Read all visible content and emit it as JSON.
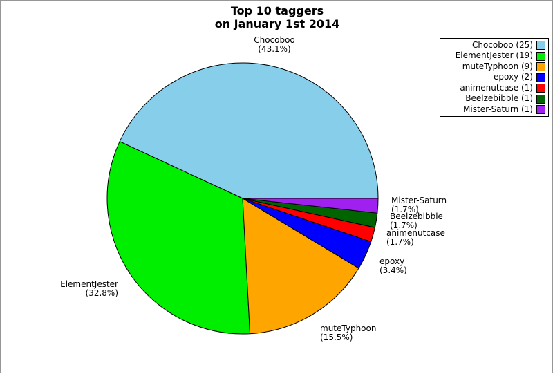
{
  "frame": {
    "background": "#ffffff",
    "border_color": "#969696"
  },
  "title": {
    "line1": "Top 10 taggers",
    "line2": "on January 1st 2014"
  },
  "chart_data": {
    "type": "pie",
    "title": "Top 10 taggers on January 1st 2014",
    "total": 58,
    "start_angle_deg": 0,
    "direction": "counterclockwise",
    "grid": false,
    "legend_position": "upper-right",
    "slices": [
      {
        "name": "Chocoboo",
        "value": 25,
        "pct_text": "(43.1%)",
        "color": "#87CEEB"
      },
      {
        "name": "ElementJester",
        "value": 19,
        "pct_text": "(32.8%)",
        "color": "#00EE00"
      },
      {
        "name": "muteTyphoon",
        "value": 9,
        "pct_text": "(15.5%)",
        "color": "#FFA500"
      },
      {
        "name": "epoxy",
        "value": 2,
        "pct_text": "(3.4%)",
        "color": "#0000FF"
      },
      {
        "name": "animenutcase",
        "value": 1,
        "pct_text": "(1.7%)",
        "color": "#FF0000"
      },
      {
        "name": "Beelzebibble",
        "value": 1,
        "pct_text": "(1.7%)",
        "color": "#006400"
      },
      {
        "name": "Mister-Saturn",
        "value": 1,
        "pct_text": "(1.7%)",
        "color": "#A020F0"
      }
    ],
    "legend_entries": [
      {
        "text": "Chocoboo (25)",
        "color": "#87CEEB"
      },
      {
        "text": "ElementJester (19)",
        "color": "#00EE00"
      },
      {
        "text": "muteTyphoon (9)",
        "color": "#FFA500"
      },
      {
        "text": "epoxy (2)",
        "color": "#0000FF"
      },
      {
        "text": "animenutcase (1)",
        "color": "#FF0000"
      },
      {
        "text": "Beelzebibble (1)",
        "color": "#006400"
      },
      {
        "text": "Mister-Saturn (1)",
        "color": "#A020F0"
      }
    ]
  }
}
